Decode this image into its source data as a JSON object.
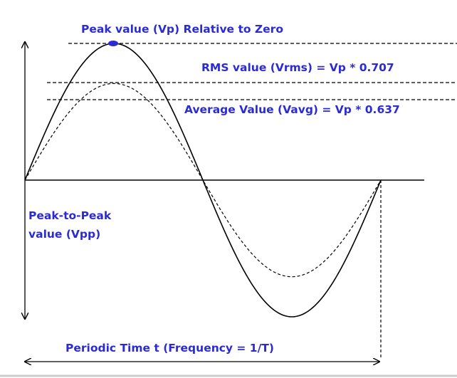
{
  "colors": {
    "label": "#2b2bd6",
    "line": "#000000",
    "peak_marker": "#2b2bd6"
  },
  "labels": {
    "peak": "Peak value (Vp) Relative to Zero",
    "rms": "RMS value (Vrms) = Vp * 0.707",
    "average": "Average Value (Vavg) = Vp * 0.637",
    "peak_to_peak_line1": "Peak-to-Peak",
    "peak_to_peak_line2": "value (Vpp)",
    "period": "Periodic Time t (Frequency = 1/T)"
  },
  "waveform": {
    "cycles": 1,
    "peak_ratio": 1.0,
    "rms_ratio": 0.707,
    "average_ratio": 0.637
  }
}
